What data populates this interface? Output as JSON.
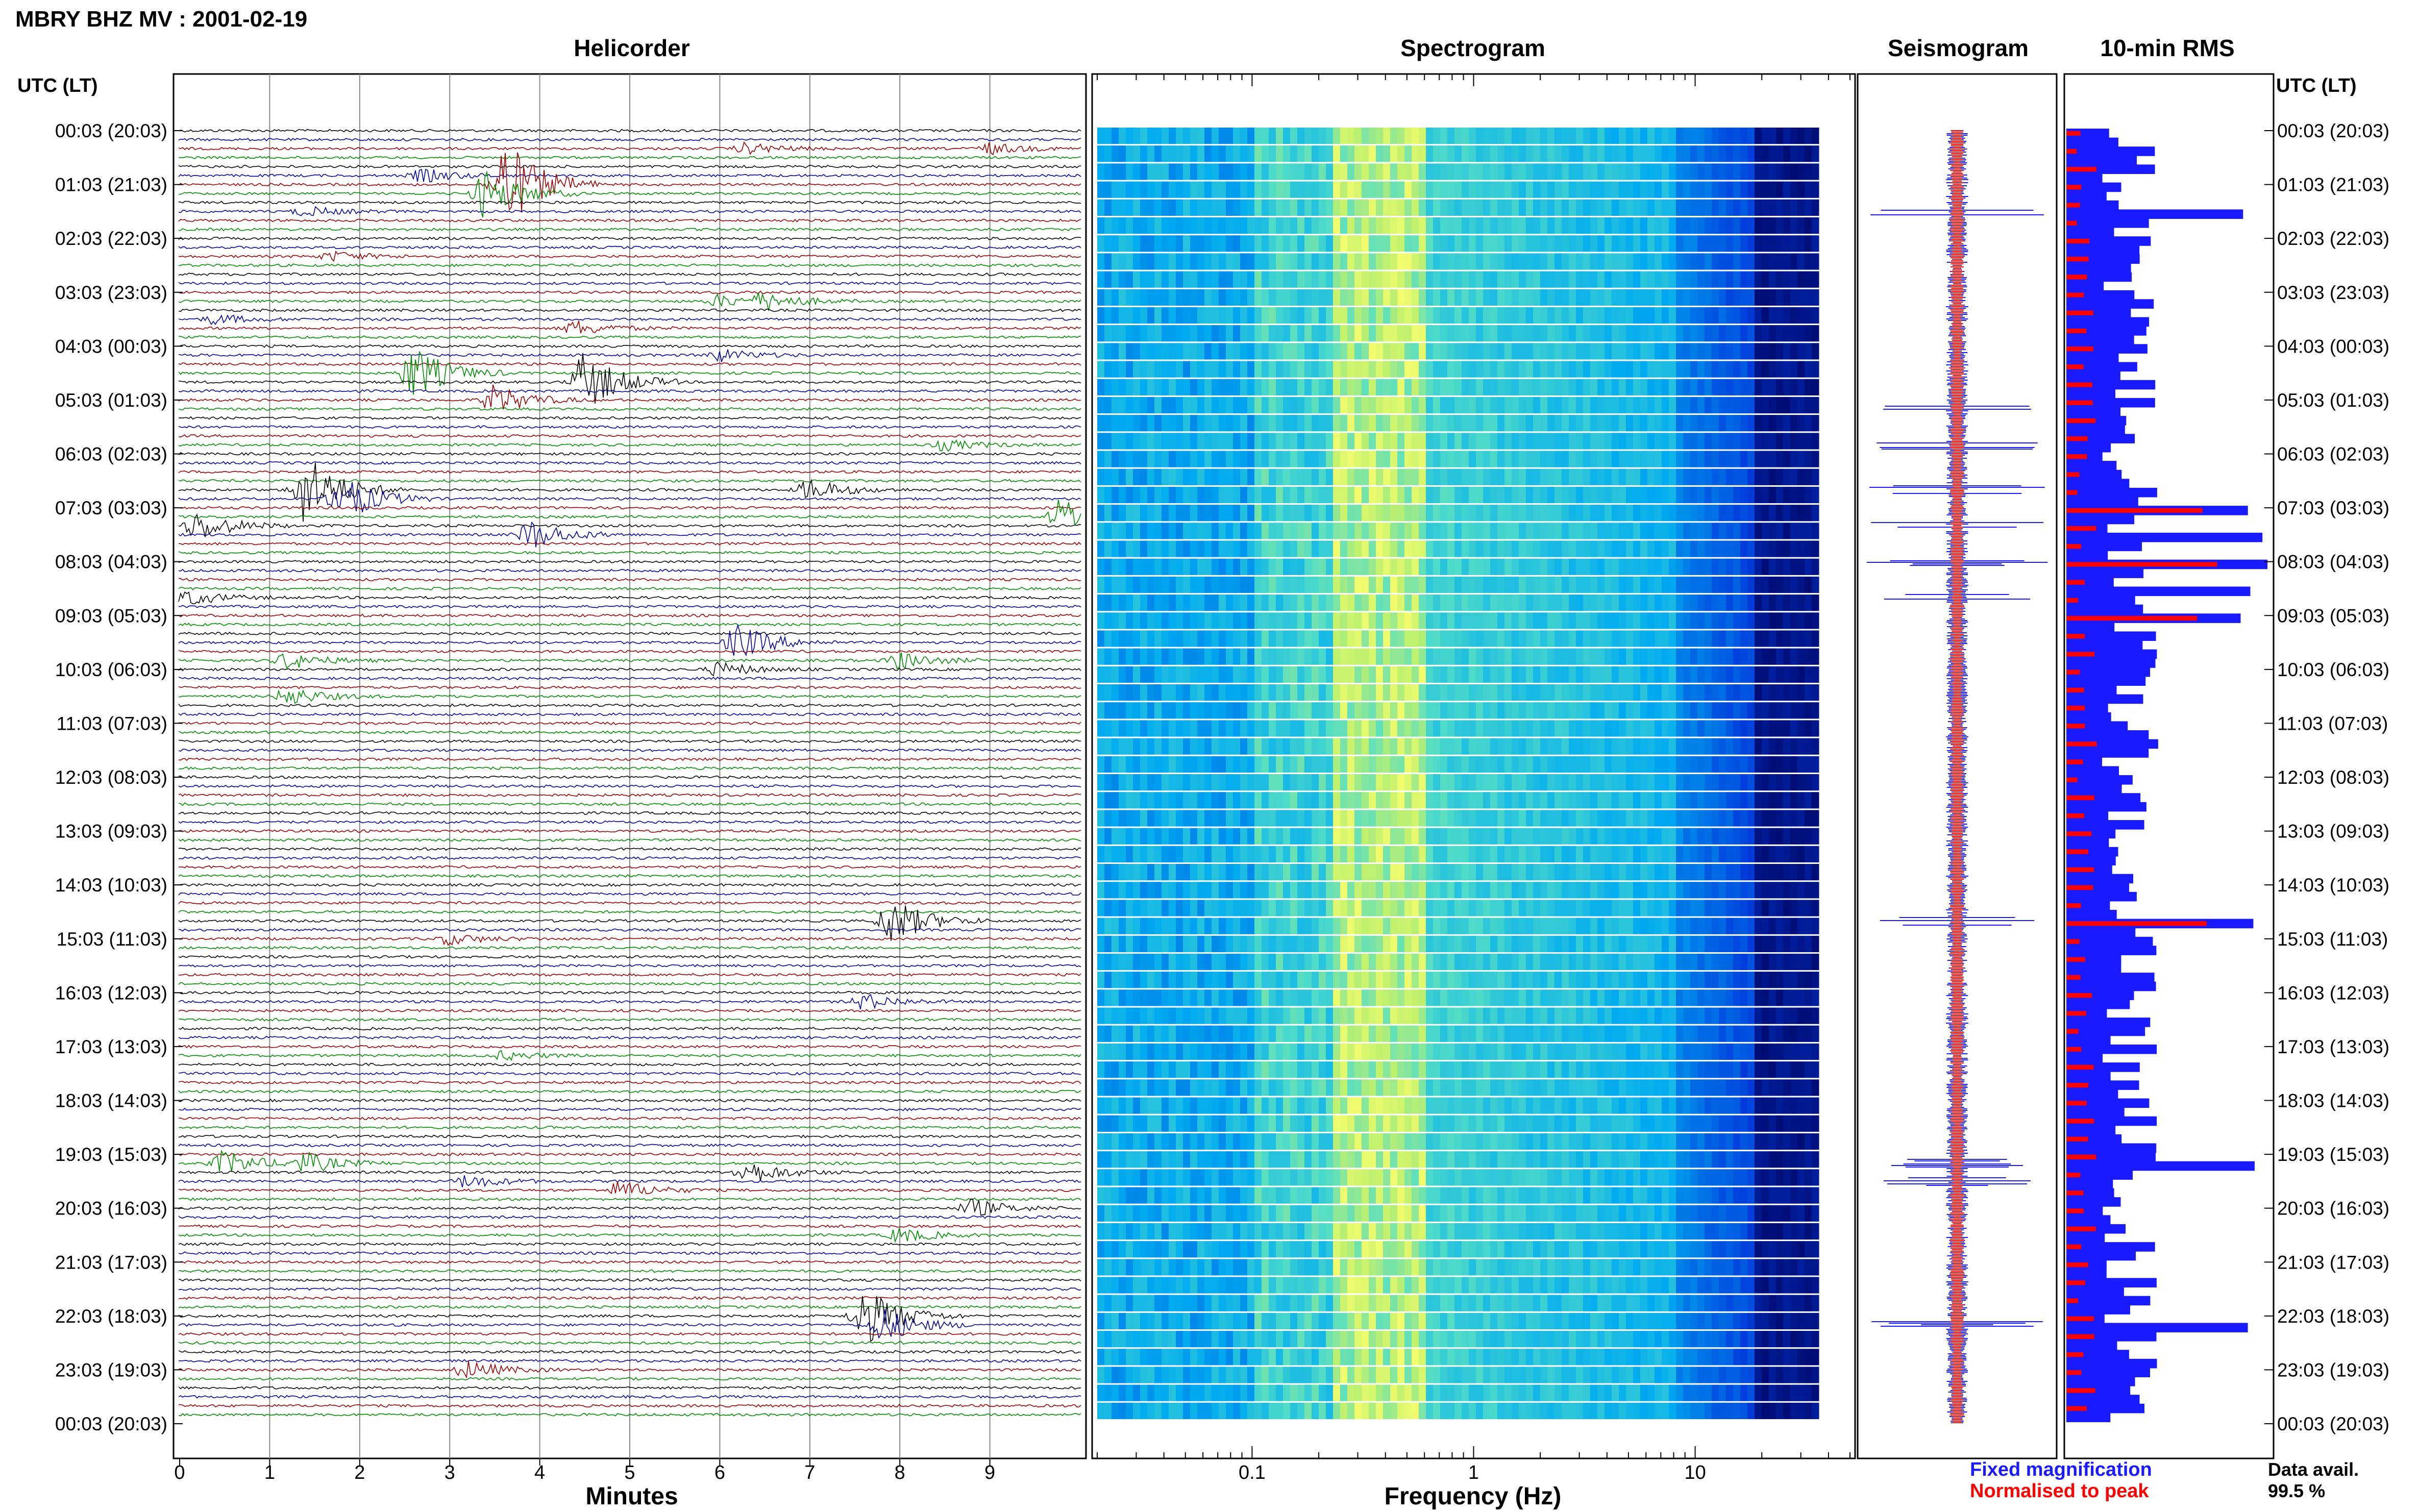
{
  "header": {
    "title": "MBRY BHZ MV : 2001-02-19"
  },
  "panels": {
    "helicorder": "Helicorder",
    "spectrogram": "Spectrogram",
    "seismogram": "Seismogram",
    "rms": "10-min RMS"
  },
  "axis": {
    "left_header": "UTC (LT)",
    "right_header": "UTC (LT)",
    "minutes_label": "Minutes",
    "frequency_label": "Frequency (Hz)",
    "minute_ticks": [
      "0",
      "1",
      "2",
      "3",
      "4",
      "5",
      "6",
      "7",
      "8",
      "9"
    ],
    "frequency_ticks": [
      "0.1",
      "1",
      "10"
    ],
    "time_labels": [
      "00:03 (20:03)",
      "01:03 (21:03)",
      "02:03 (22:03)",
      "03:03 (23:03)",
      "04:03 (00:03)",
      "05:03 (01:03)",
      "06:03 (02:03)",
      "07:03 (03:03)",
      "08:03 (04:03)",
      "09:03 (05:03)",
      "10:03 (06:03)",
      "11:03 (07:03)",
      "12:03 (08:03)",
      "13:03 (09:03)",
      "14:03 (10:03)",
      "15:03 (11:03)",
      "16:03 (12:03)",
      "17:03 (13:03)",
      "18:03 (14:03)",
      "19:03 (15:03)",
      "20:03 (16:03)",
      "21:03 (17:03)",
      "22:03 (18:03)",
      "23:03 (19:03)",
      "00:03 (20:03)"
    ]
  },
  "legend": {
    "fixed": "Fixed magnification",
    "normalised": "Normalised to peak",
    "fixed_color": "#1a1aff",
    "normalised_color": "#ff0000"
  },
  "availability": {
    "label": "Data avail.",
    "value": "99.5 %"
  },
  "colors": {
    "trace_cycle": [
      "#000000",
      "#0000a0",
      "#9b0000",
      "#008c00"
    ],
    "spectrogram_low": "#00005a",
    "spectrogram_high": "#ffff66"
  },
  "chart_data": {
    "type": "heatmap",
    "station": "MBRY",
    "channel": "BHZ",
    "network": "MV",
    "date": "2001-02-19",
    "rows": 144,
    "minutes_range": [
      0,
      10
    ],
    "frequency_range": [
      0.02,
      50
    ],
    "frequency_scale": "log",
    "events": [
      {
        "row": 2,
        "minute": 6.3,
        "amp": 0.9
      },
      {
        "row": 2,
        "minute": 9.0,
        "amp": 0.9
      },
      {
        "row": 6,
        "minute": 3.6,
        "amp": 8
      },
      {
        "row": 7,
        "minute": 3.4,
        "amp": 4
      },
      {
        "row": 5,
        "minute": 2.7,
        "amp": 1.1
      },
      {
        "row": 9,
        "minute": 1.4,
        "amp": 0.8
      },
      {
        "row": 14,
        "minute": 1.7,
        "amp": 0.8
      },
      {
        "row": 19,
        "minute": 6.5,
        "amp": 1.4
      },
      {
        "row": 19,
        "minute": 6.0,
        "amp": 1.0
      },
      {
        "row": 21,
        "minute": 0.4,
        "amp": 0.8
      },
      {
        "row": 22,
        "minute": 4.4,
        "amp": 1.2
      },
      {
        "row": 25,
        "minute": 6.0,
        "amp": 1.0
      },
      {
        "row": 27,
        "minute": 2.6,
        "amp": 4.5
      },
      {
        "row": 28,
        "minute": 4.5,
        "amp": 5
      },
      {
        "row": 30,
        "minute": 3.5,
        "amp": 2.5
      },
      {
        "row": 35,
        "minute": 8.5,
        "amp": 0.9
      },
      {
        "row": 40,
        "minute": 1.4,
        "amp": 6
      },
      {
        "row": 40,
        "minute": 7.0,
        "amp": 1.8
      },
      {
        "row": 41,
        "minute": 1.8,
        "amp": 4
      },
      {
        "row": 43,
        "minute": 9.8,
        "amp": 3
      },
      {
        "row": 44,
        "minute": 0.2,
        "amp": 2.5
      },
      {
        "row": 45,
        "minute": 3.9,
        "amp": 2.5
      },
      {
        "row": 52,
        "minute": 0.1,
        "amp": 1.2
      },
      {
        "row": 57,
        "minute": 6.2,
        "amp": 3
      },
      {
        "row": 59,
        "minute": 1.2,
        "amp": 1.4
      },
      {
        "row": 59,
        "minute": 8.0,
        "amp": 1.4
      },
      {
        "row": 60,
        "minute": 6.0,
        "amp": 1.2
      },
      {
        "row": 63,
        "minute": 1.2,
        "amp": 1.5
      },
      {
        "row": 88,
        "minute": 7.9,
        "amp": 4
      },
      {
        "row": 90,
        "minute": 3.0,
        "amp": 0.9
      },
      {
        "row": 97,
        "minute": 7.6,
        "amp": 1.3
      },
      {
        "row": 103,
        "minute": 3.6,
        "amp": 0.7
      },
      {
        "row": 115,
        "minute": 0.5,
        "amp": 2
      },
      {
        "row": 115,
        "minute": 1.4,
        "amp": 1.6
      },
      {
        "row": 116,
        "minute": 6.3,
        "amp": 2
      },
      {
        "row": 117,
        "minute": 3.2,
        "amp": 1.1
      },
      {
        "row": 118,
        "minute": 4.9,
        "amp": 1.5
      },
      {
        "row": 120,
        "minute": 8.8,
        "amp": 1.5
      },
      {
        "row": 123,
        "minute": 8.0,
        "amp": 1.2
      },
      {
        "row": 132,
        "minute": 7.6,
        "amp": 5
      },
      {
        "row": 133,
        "minute": 7.8,
        "amp": 3
      },
      {
        "row": 138,
        "minute": 3.2,
        "amp": 1.5
      }
    ],
    "rms_peak_rows": [
      9,
      42,
      45,
      48,
      51,
      54,
      88,
      115,
      133
    ],
    "seismogram_spike_rows": [
      9,
      31,
      35,
      40,
      44,
      48,
      52,
      88,
      115,
      117,
      133
    ]
  }
}
